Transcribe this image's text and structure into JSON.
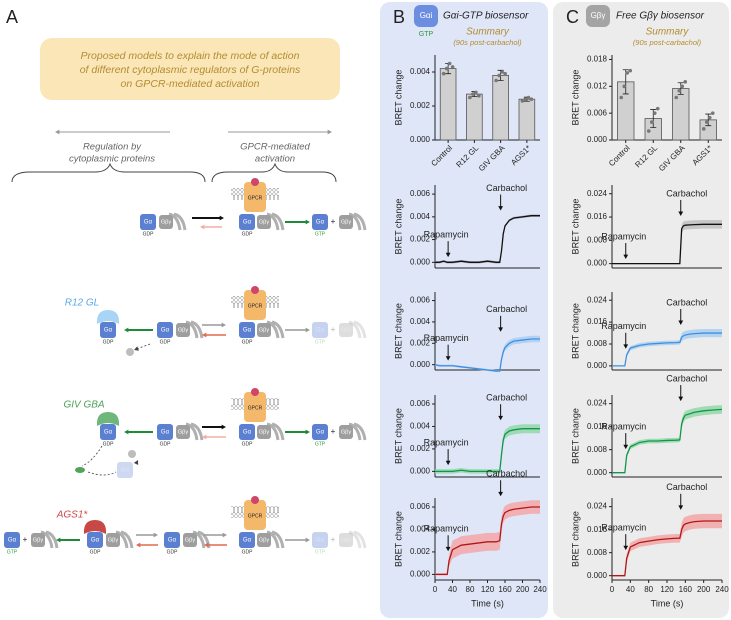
{
  "diagram": {
    "label": "A",
    "box_text": [
      "Proposed models to explain the mode of action",
      "of different cytoplasmic regulators of G-proteins",
      "on GPCR-mediated activation"
    ],
    "left_header": [
      "Regulation by",
      "cytoplasmic proteins"
    ],
    "right_header": [
      "GPCR-mediated",
      "activation"
    ],
    "protein_labels": {
      "g_alpha": "Gα",
      "g_beta_gamma": "Gβγ",
      "gdp": "GDP",
      "gtp": "GTP",
      "gpcr": "GPCR",
      "plus": "+"
    },
    "regulators": [
      "R12 GL",
      "GIV GBA",
      "AGS1*"
    ]
  },
  "panels": [
    {
      "label": "B",
      "title": "Gαi-GTP biosensor",
      "icon_text": "Gαi",
      "icon_sub": "GTP"
    },
    {
      "label": "C",
      "title": "Free Gβγ biosensor",
      "icon_text": "Gβγ"
    }
  ],
  "chart_data": [
    {
      "type": "bar",
      "title": "Summary",
      "subtitle": "(90s post-carbachol)",
      "ylabel": "BRET change",
      "categories": [
        "Control",
        "R12 GL",
        "GIV GBA",
        "AGS1*"
      ],
      "values": [
        0.0042,
        0.0027,
        0.0038,
        0.0024
      ],
      "errors": [
        0.0003,
        0.00015,
        0.0003,
        0.00012
      ],
      "points": [
        [
          0.0039,
          0.0042,
          0.0045,
          0.0043
        ],
        [
          0.0025,
          0.0027,
          0.0028,
          0.0026
        ],
        [
          0.0035,
          0.0038,
          0.004,
          0.0039
        ],
        [
          0.0023,
          0.0024,
          0.0025,
          0.0024
        ]
      ],
      "color": "#d0d0d0",
      "ylim": [
        0,
        0.005
      ],
      "yticks": [
        {
          "value": 0,
          "label": "0.000"
        },
        0.002,
        0.004
      ]
    },
    {
      "type": "line",
      "ylabel": "BRET change",
      "xlim": [
        0,
        240
      ],
      "x": [
        0,
        10,
        20,
        28,
        32,
        40,
        60,
        80,
        100,
        120,
        140,
        148,
        152,
        156,
        160,
        170,
        180,
        200,
        220,
        240
      ],
      "series": [
        {
          "color": "#111111",
          "band_color": "#9e9e9e",
          "values": [
            0,
            0,
            0.0001,
            0,
            0,
            0,
            0.0001,
            0,
            0,
            0.0001,
            0,
            0,
            0.001,
            0.0025,
            0.0032,
            0.0037,
            0.0039,
            0.004,
            0.0041,
            0.0041
          ],
          "error": [
            0.0001,
            0.0001,
            0.0001,
            0.0001,
            0.0001,
            0.0001,
            0.0001,
            0.0001,
            0.0001,
            0.0001,
            0.0001,
            0.0001,
            0.0001,
            0.0001,
            0.0001,
            0.0001,
            0.0001,
            0.0001,
            0.0001,
            0.0001
          ]
        }
      ],
      "annotations": [
        {
          "text": "Rapamycin",
          "x": 30
        },
        {
          "text": "Carbachol",
          "x": 150
        }
      ],
      "ylim": [
        -0.0005,
        0.0068
      ],
      "yticks": [
        {
          "value": 0,
          "label": "0.000"
        },
        0.002,
        0.004,
        0.006
      ]
    },
    {
      "type": "line",
      "ylabel": "BRET change",
      "xlim": [
        0,
        240
      ],
      "x": [
        0,
        10,
        20,
        28,
        32,
        40,
        60,
        80,
        100,
        120,
        140,
        148,
        152,
        156,
        160,
        170,
        180,
        200,
        220,
        240
      ],
      "series": [
        {
          "color": "#3f8fe0",
          "band_color": "#a6cdf3",
          "values": [
            0,
            -0.0001,
            -0.0001,
            -0.0001,
            -0.0001,
            -0.0001,
            -0.0002,
            -0.0003,
            -0.0004,
            -0.0005,
            -0.0006,
            -0.0006,
            0.0005,
            0.0012,
            0.0016,
            0.002,
            0.0022,
            0.0023,
            0.0024,
            0.0024
          ],
          "error": [
            0.0001,
            0.0001,
            0.0001,
            0.0001,
            0.0001,
            0.0001,
            0.0001,
            0.0001,
            0.0001,
            0.0001,
            0.0001,
            0.0001,
            0.0003,
            0.0003,
            0.0003,
            0.0003,
            0.0003,
            0.0003,
            0.0003,
            0.0003
          ]
        }
      ],
      "annotations": [
        {
          "text": "Rapamycin",
          "x": 30
        },
        {
          "text": "Carbachol",
          "x": 150
        }
      ],
      "ylim": [
        -0.0005,
        0.0068
      ],
      "yticks": [
        {
          "value": 0,
          "label": "0.000"
        },
        0.002,
        0.004,
        0.006
      ]
    },
    {
      "type": "line",
      "ylabel": "BRET change",
      "xlim": [
        0,
        240
      ],
      "x": [
        0,
        10,
        20,
        28,
        32,
        40,
        60,
        80,
        100,
        120,
        140,
        148,
        152,
        156,
        160,
        170,
        180,
        200,
        220,
        240
      ],
      "series": [
        {
          "color": "#14964a",
          "band_color": "#8fd7a6",
          "values": [
            0,
            0,
            0,
            0,
            0,
            0,
            0.0001,
            0,
            0,
            0,
            0,
            0,
            0.0015,
            0.0028,
            0.0033,
            0.0036,
            0.0037,
            0.0038,
            0.0038,
            0.0038
          ],
          "error": [
            0.0002,
            0.0002,
            0.0002,
            0.0002,
            0.0002,
            0.0002,
            0.0002,
            0.0002,
            0.0002,
            0.0002,
            0.0002,
            0.0002,
            0.0004,
            0.0004,
            0.0004,
            0.0004,
            0.0004,
            0.0004,
            0.0004,
            0.0004
          ]
        }
      ],
      "annotations": [
        {
          "text": "Rapamycin",
          "x": 30
        },
        {
          "text": "Carbachol",
          "x": 150
        }
      ],
      "ylim": [
        -0.0005,
        0.0068
      ],
      "yticks": [
        {
          "value": 0,
          "label": "0.000"
        },
        0.002,
        0.004,
        0.006
      ]
    },
    {
      "type": "line",
      "ylabel": "BRET change",
      "xlim": [
        0,
        240
      ],
      "xlabel": "Time (s)",
      "xticks": [
        0,
        40,
        80,
        120,
        160,
        200,
        240
      ],
      "x": [
        0,
        10,
        20,
        28,
        32,
        40,
        60,
        80,
        100,
        120,
        140,
        148,
        152,
        156,
        160,
        170,
        180,
        200,
        220,
        240
      ],
      "series": [
        {
          "color": "#b01818",
          "band_color": "#f4a3a3",
          "values": [
            0,
            0,
            0,
            0,
            0.0012,
            0.0022,
            0.0026,
            0.0027,
            0.0028,
            0.0029,
            0.0029,
            0.003,
            0.0045,
            0.0052,
            0.0055,
            0.0057,
            0.0058,
            0.0059,
            0.006,
            0.006
          ],
          "error": [
            0.0001,
            0.0001,
            0.0001,
            0.0001,
            0.0005,
            0.0008,
            0.0008,
            0.0008,
            0.0008,
            0.0008,
            0.0008,
            0.0008,
            0.0006,
            0.0006,
            0.0006,
            0.0006,
            0.0006,
            0.0006,
            0.0006,
            0.0006
          ]
        }
      ],
      "annotations": [
        {
          "text": "Rapamycin",
          "x": 30
        },
        {
          "text": "Carbachol",
          "x": 150
        }
      ],
      "ylim": [
        -0.0005,
        0.0068
      ],
      "yticks": [
        {
          "value": 0,
          "label": "0.000"
        },
        0.002,
        0.004,
        0.006
      ]
    },
    {
      "type": "bar",
      "title": "Summary",
      "subtitle": "(90s post-carbachol)",
      "ylabel": "BRET change",
      "categories": [
        "Control",
        "R12 GL",
        "GIV GBA",
        "AGS1*"
      ],
      "values": [
        0.013,
        0.0048,
        0.0115,
        0.0045
      ],
      "errors": [
        0.0027,
        0.002,
        0.0013,
        0.0013
      ],
      "points": [
        [
          0.0095,
          0.012,
          0.015,
          0.0155
        ],
        [
          0.002,
          0.004,
          0.006,
          0.007
        ],
        [
          0.0095,
          0.011,
          0.012,
          0.013
        ],
        [
          0.0025,
          0.004,
          0.005,
          0.006
        ]
      ],
      "color": "#d0d0d0",
      "ylim": [
        0,
        0.019
      ],
      "yticks": [
        {
          "value": 0,
          "label": "0.000"
        },
        0.006,
        0.012,
        0.018
      ]
    },
    {
      "type": "line",
      "ylabel": "BRET change",
      "xlim": [
        0,
        240
      ],
      "x": [
        0,
        10,
        20,
        28,
        32,
        40,
        60,
        80,
        100,
        120,
        140,
        148,
        152,
        156,
        160,
        170,
        180,
        200,
        220,
        240
      ],
      "series": [
        {
          "color": "#111111",
          "band_color": "#bdbdbd",
          "values": [
            0,
            0,
            0,
            0,
            0,
            0,
            0,
            0,
            0,
            0,
            0,
            0,
            0.012,
            0.013,
            0.0132,
            0.0133,
            0.0134,
            0.0135,
            0.0135,
            0.0135
          ],
          "error": [
            0.0002,
            0.0002,
            0.0002,
            0.0002,
            0.0002,
            0.0002,
            0.0002,
            0.0002,
            0.0002,
            0.0002,
            0.0002,
            0.0002,
            0.0015,
            0.0015,
            0.0015,
            0.0015,
            0.0015,
            0.0015,
            0.0015,
            0.0015
          ]
        }
      ],
      "annotations": [
        {
          "text": "Rapamycin",
          "x": 30
        },
        {
          "text": "Carbachol",
          "x": 150
        }
      ],
      "ylim": [
        -0.0015,
        0.027
      ],
      "yticks": [
        {
          "value": 0,
          "label": "0.000"
        },
        0.008,
        0.016,
        0.024
      ]
    },
    {
      "type": "line",
      "ylabel": "BRET change",
      "xlim": [
        0,
        240
      ],
      "x": [
        0,
        10,
        20,
        28,
        32,
        40,
        60,
        80,
        100,
        120,
        140,
        148,
        152,
        156,
        160,
        170,
        180,
        200,
        220,
        240
      ],
      "series": [
        {
          "color": "#3f8fe0",
          "band_color": "#a6cdf3",
          "values": [
            0,
            0,
            0,
            0,
            0.004,
            0.0065,
            0.0075,
            0.008,
            0.0082,
            0.0084,
            0.0085,
            0.0086,
            0.0105,
            0.011,
            0.0113,
            0.0116,
            0.0118,
            0.012,
            0.012,
            0.012
          ],
          "error": [
            0.0002,
            0.0002,
            0.0002,
            0.0002,
            0.0008,
            0.0008,
            0.0008,
            0.0008,
            0.0008,
            0.0008,
            0.0008,
            0.0008,
            0.0015,
            0.0015,
            0.0015,
            0.0015,
            0.0015,
            0.0015,
            0.0015,
            0.0015
          ]
        }
      ],
      "annotations": [
        {
          "text": "Rapamycin",
          "x": 30
        },
        {
          "text": "Carbachol",
          "x": 150
        }
      ],
      "ylim": [
        -0.0015,
        0.027
      ],
      "yticks": [
        {
          "value": 0,
          "label": "0.000"
        },
        0.008,
        0.016,
        0.024
      ]
    },
    {
      "type": "line",
      "ylabel": "BRET change",
      "xlim": [
        0,
        240
      ],
      "x": [
        0,
        10,
        20,
        28,
        32,
        40,
        60,
        80,
        100,
        120,
        140,
        148,
        152,
        156,
        160,
        170,
        180,
        200,
        220,
        240
      ],
      "series": [
        {
          "color": "#14964a",
          "band_color": "#8fd7a6",
          "values": [
            0,
            0,
            0,
            0,
            0.006,
            0.009,
            0.0105,
            0.011,
            0.011,
            0.0112,
            0.0113,
            0.0114,
            0.017,
            0.019,
            0.02,
            0.0205,
            0.021,
            0.0215,
            0.0218,
            0.022
          ],
          "error": [
            0.0002,
            0.0002,
            0.0002,
            0.0002,
            0.0008,
            0.0008,
            0.0008,
            0.0008,
            0.0008,
            0.0008,
            0.0008,
            0.0008,
            0.0015,
            0.0015,
            0.0015,
            0.0015,
            0.0015,
            0.0015,
            0.0015,
            0.0015
          ]
        }
      ],
      "annotations": [
        {
          "text": "Rapamycin",
          "x": 30
        },
        {
          "text": "Carbachol",
          "x": 150
        }
      ],
      "ylim": [
        -0.0015,
        0.027
      ],
      "yticks": [
        {
          "value": 0,
          "label": "0.000"
        },
        0.008,
        0.016,
        0.024
      ]
    },
    {
      "type": "line",
      "ylabel": "BRET change",
      "xlim": [
        0,
        240
      ],
      "xlabel": "Time (s)",
      "xticks": [
        0,
        40,
        80,
        120,
        160,
        200,
        240
      ],
      "x": [
        0,
        10,
        20,
        28,
        32,
        40,
        60,
        80,
        100,
        120,
        140,
        148,
        152,
        156,
        160,
        170,
        180,
        200,
        220,
        240
      ],
      "series": [
        {
          "color": "#b01818",
          "band_color": "#f4a3a3",
          "values": [
            0,
            0,
            0,
            0,
            0.006,
            0.01,
            0.0115,
            0.012,
            0.0125,
            0.0128,
            0.013,
            0.013,
            0.016,
            0.0175,
            0.018,
            0.0185,
            0.0188,
            0.019,
            0.019,
            0.019
          ],
          "error": [
            0.0002,
            0.0002,
            0.0002,
            0.0002,
            0.0015,
            0.0015,
            0.0015,
            0.0015,
            0.0015,
            0.0015,
            0.0015,
            0.0015,
            0.0025,
            0.0025,
            0.0025,
            0.0025,
            0.0025,
            0.0025,
            0.0025,
            0.0025
          ]
        }
      ],
      "annotations": [
        {
          "text": "Rapamycin",
          "x": 30
        },
        {
          "text": "Carbachol",
          "x": 150
        }
      ],
      "ylim": [
        -0.0015,
        0.027
      ],
      "yticks": [
        {
          "value": 0,
          "label": "0.000"
        },
        0.008,
        0.016,
        0.024
      ]
    }
  ]
}
